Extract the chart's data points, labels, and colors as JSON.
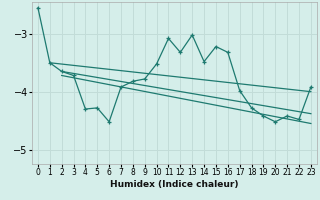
{
  "xlabel": "Humidex (Indice chaleur)",
  "bg_color": "#d5eeea",
  "grid_color": "#c2dcd8",
  "line_color": "#1e7a70",
  "xlim": [
    -0.5,
    23.5
  ],
  "ylim": [
    -5.25,
    -2.45
  ],
  "yticks": [
    -5,
    -4,
    -3
  ],
  "xticks": [
    0,
    1,
    2,
    3,
    4,
    5,
    6,
    7,
    8,
    9,
    10,
    11,
    12,
    13,
    14,
    15,
    16,
    17,
    18,
    19,
    20,
    21,
    22,
    23
  ],
  "main_x": [
    0,
    1,
    2,
    3,
    4,
    5,
    6,
    7,
    8,
    9,
    10,
    11,
    12,
    13,
    14,
    15,
    16,
    17,
    18,
    19,
    20,
    21,
    22,
    23
  ],
  "main_y": [
    -2.55,
    -3.5,
    -3.65,
    -3.72,
    -4.3,
    -4.28,
    -4.52,
    -3.92,
    -3.82,
    -3.78,
    -3.52,
    -3.08,
    -3.32,
    -3.02,
    -3.48,
    -3.22,
    -3.32,
    -3.98,
    -4.28,
    -4.42,
    -4.52,
    -4.42,
    -4.48,
    -3.92
  ],
  "trend1_x": [
    1,
    23
  ],
  "trend1_y": [
    -3.5,
    -4.0
  ],
  "trend2_x": [
    2,
    23
  ],
  "trend2_y": [
    -3.65,
    -4.38
  ],
  "trend3_x": [
    2,
    23
  ],
  "trend3_y": [
    -3.72,
    -4.55
  ]
}
